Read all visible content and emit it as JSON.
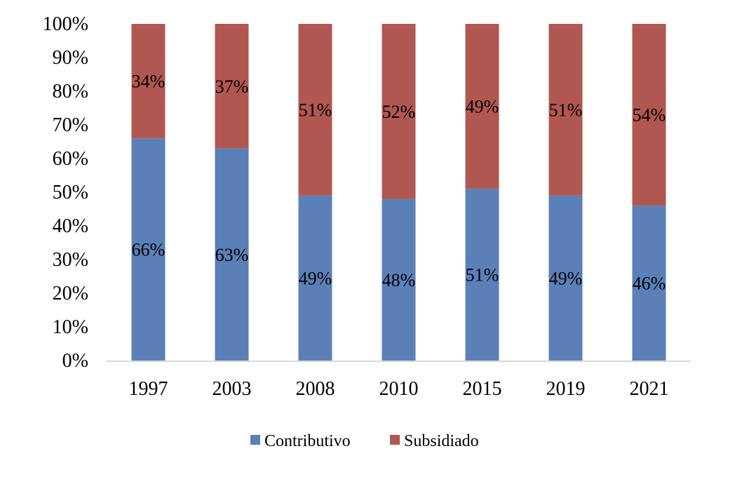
{
  "chart_data": {
    "type": "bar",
    "stacked": true,
    "percent": true,
    "categories": [
      "1997",
      "2003",
      "2008",
      "2010",
      "2015",
      "2019",
      "2021"
    ],
    "series": [
      {
        "name": "Contributivo",
        "values": [
          66,
          63,
          49,
          48,
          51,
          49,
          46
        ],
        "labels": [
          "66%",
          "63%",
          "49%",
          "48%",
          "51%",
          "49%",
          "46%"
        ],
        "color": "#5b80b8"
      },
      {
        "name": "Subsidiado",
        "values": [
          34,
          37,
          51,
          52,
          49,
          51,
          54
        ],
        "labels": [
          "34%",
          "37%",
          "51%",
          "52%",
          "49%",
          "51%",
          "54%"
        ],
        "color": "#b15751"
      }
    ],
    "yticks": [
      "0%",
      "10%",
      "20%",
      "30%",
      "40%",
      "50%",
      "60%",
      "70%",
      "80%",
      "90%",
      "100%"
    ],
    "ylim": [
      0,
      100
    ],
    "grid": false,
    "legend": "bottom",
    "axis_color": "#d9d9d9"
  }
}
